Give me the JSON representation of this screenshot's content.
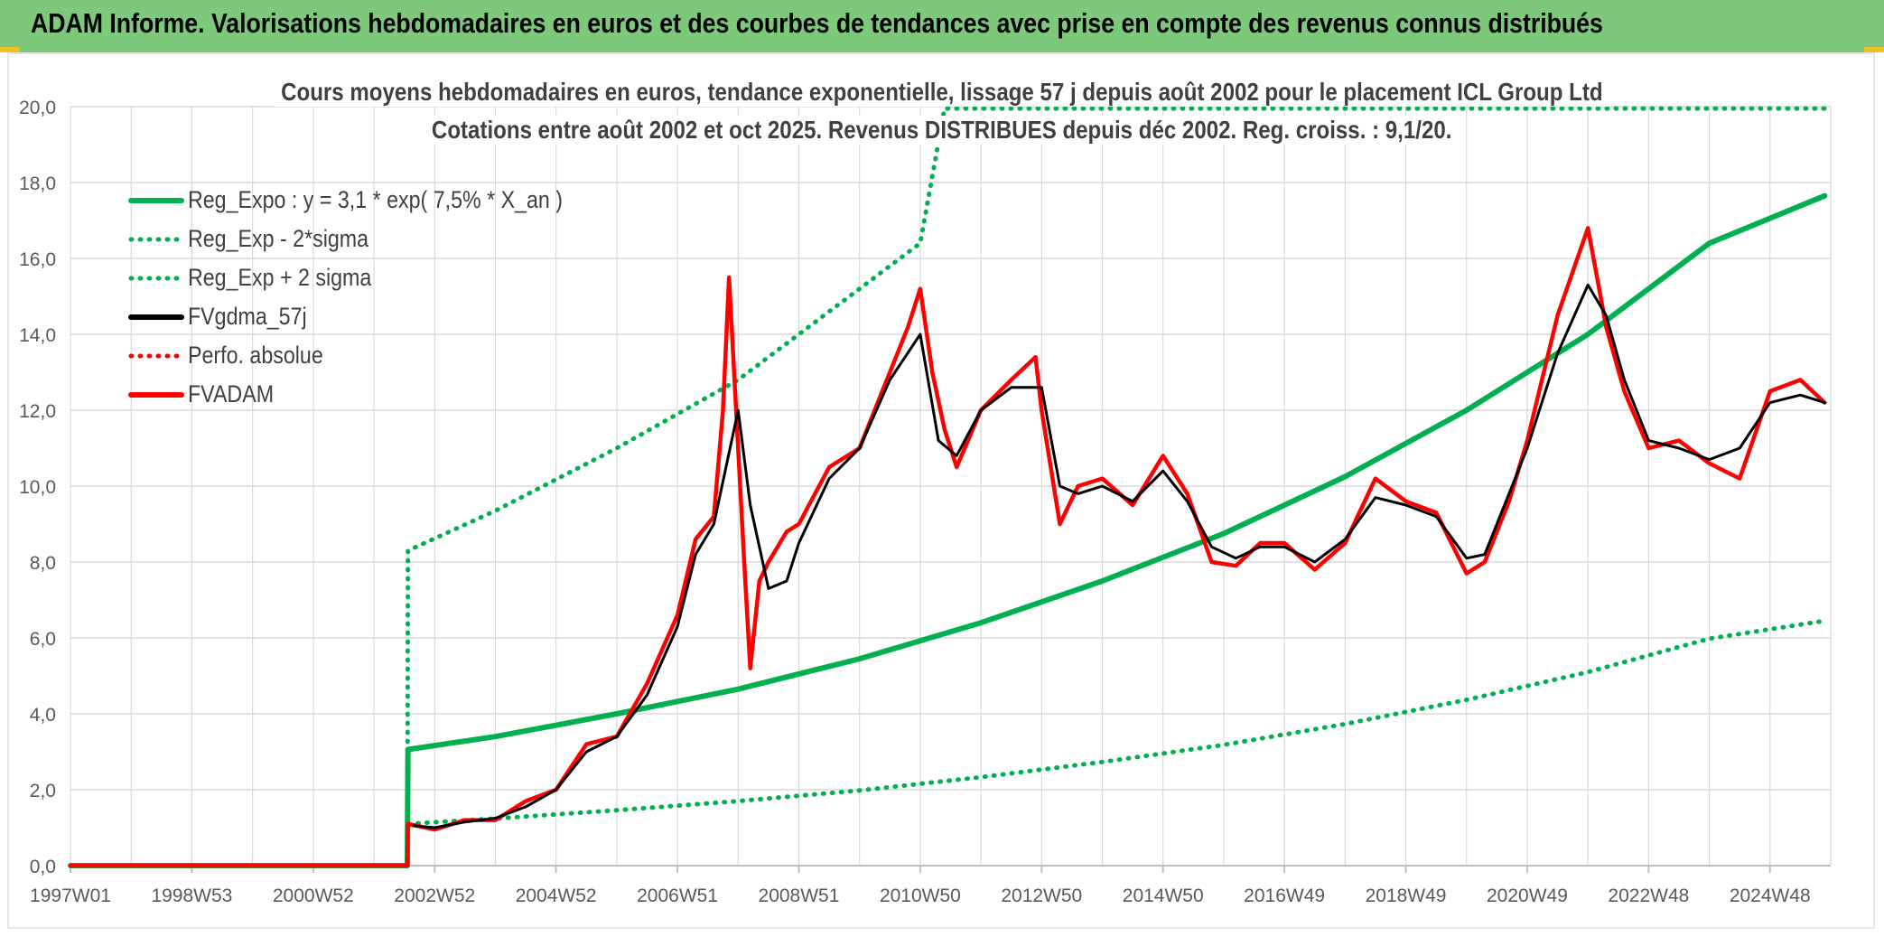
{
  "header": {
    "title": "ADAM Informe. Valorisations hebdomadaires en euros et des courbes de tendances avec prise en compte des revenus connus distribués"
  },
  "colors": {
    "header_bg": "#7dc87a",
    "green": "#00b050",
    "red": "#ff0000",
    "black": "#000000",
    "grid": "#d9d9d9",
    "axis_text": "#595959"
  },
  "chart_data": {
    "type": "line",
    "title": "Cours moyens hebdomadaires en euros, tendance exponentielle, lissage 57 j depuis août 2002 pour le placement ICL Group Ltd",
    "subtitle": "Cotations entre août 2002 et oct 2025. Revenus DISTRIBUES depuis déc 2002. Reg. croiss. : 9,1/20.",
    "x_tick_labels": [
      "1997W01",
      "1998W53",
      "2000W52",
      "2002W52",
      "2004W52",
      "2006W51",
      "2008W51",
      "2010W50",
      "2012W50",
      "2014W50",
      "2016W49",
      "2018W49",
      "2020W49",
      "2022W48",
      "2024W48"
    ],
    "x_ticks_decimal_year": [
      1997.0,
      1999.0,
      2001.0,
      2003.0,
      2005.0,
      2007.0,
      2009.0,
      2011.0,
      2013.0,
      2015.0,
      2017.0,
      2019.0,
      2021.0,
      2023.0,
      2025.0
    ],
    "x_range": [
      1997.0,
      2026.0
    ],
    "y_tick_labels": [
      "0,0",
      "2,0",
      "4,0",
      "6,0",
      "8,0",
      "10,0",
      "12,0",
      "14,0",
      "16,0",
      "18,0",
      "20,0"
    ],
    "ylim": [
      0,
      20
    ],
    "grid": true,
    "legend_position": "top-left",
    "series": [
      {
        "name": "Reg_Expo : y = 3,1 * exp( 7,5% *  X_an )",
        "color": "#00b050",
        "style": "solid",
        "x": [
          1997.0,
          2002.55,
          2002.56,
          2004,
          2006,
          2008,
          2010,
          2012,
          2014,
          2016,
          2018,
          2020,
          2022,
          2024,
          2025.9
        ],
        "y": [
          0,
          0,
          3.06,
          3.4,
          4.0,
          4.65,
          5.45,
          6.4,
          7.5,
          8.75,
          10.25,
          12.0,
          14.0,
          16.4,
          17.65
        ]
      },
      {
        "name": "Reg_Exp - 2*sigma",
        "color": "#00b050",
        "style": "dotted",
        "x": [
          1997.0,
          2002.55,
          2002.56,
          2004,
          2006,
          2008,
          2010,
          2012,
          2014,
          2016,
          2018,
          2020,
          2022,
          2024,
          2025.9
        ],
        "y": [
          0,
          0,
          1.1,
          1.24,
          1.46,
          1.7,
          1.98,
          2.33,
          2.73,
          3.18,
          3.73,
          4.37,
          5.1,
          5.98,
          6.45
        ]
      },
      {
        "name": "Reg_Exp + 2 sigma",
        "color": "#00b050",
        "style": "dotted",
        "x": [
          1997.0,
          2002.55,
          2002.56,
          2004,
          2006,
          2008,
          2010,
          2011.0,
          2011.4,
          2024.0,
          2025.9
        ],
        "y": [
          0,
          0,
          8.3,
          9.35,
          11.0,
          12.8,
          15.2,
          16.4,
          19.95,
          19.95,
          19.95
        ]
      },
      {
        "name": "FVgdma_57j",
        "color": "#000000",
        "style": "solid",
        "x": [
          2002.65,
          2003.0,
          2003.5,
          2004.0,
          2004.5,
          2005.0,
          2005.5,
          2006.0,
          2006.5,
          2007.0,
          2007.3,
          2007.6,
          2008.0,
          2008.2,
          2008.5,
          2008.8,
          2009.0,
          2009.5,
          2010.0,
          2010.5,
          2011.0,
          2011.3,
          2011.6,
          2012.0,
          2012.5,
          2013.0,
          2013.3,
          2013.6,
          2014.0,
          2014.5,
          2015.0,
          2015.4,
          2015.8,
          2016.2,
          2016.6,
          2017.0,
          2017.5,
          2018.0,
          2018.5,
          2019.0,
          2019.5,
          2020.0,
          2020.3,
          2020.7,
          2021.0,
          2021.5,
          2022.0,
          2022.3,
          2022.6,
          2023.0,
          2023.5,
          2024.0,
          2024.5,
          2025.0,
          2025.5,
          2025.9
        ],
        "y": [
          1.05,
          1.0,
          1.15,
          1.25,
          1.55,
          2.0,
          3.0,
          3.4,
          4.5,
          6.3,
          8.2,
          9.0,
          12.0,
          9.5,
          7.3,
          7.5,
          8.5,
          10.2,
          11.0,
          12.8,
          14.0,
          11.2,
          10.8,
          12.0,
          12.6,
          12.6,
          10.0,
          9.8,
          10.0,
          9.6,
          10.4,
          9.6,
          8.4,
          8.1,
          8.4,
          8.4,
          8.0,
          8.6,
          9.7,
          9.5,
          9.2,
          8.1,
          8.2,
          9.8,
          11.0,
          13.5,
          15.3,
          14.5,
          12.8,
          11.2,
          11.0,
          10.7,
          11.0,
          12.2,
          12.4,
          12.2
        ]
      },
      {
        "name": "Perfo. absolue",
        "color": "#ff0000",
        "style": "dotted",
        "x": [],
        "y": []
      },
      {
        "name": "FVADAM",
        "color": "#ff0000",
        "style": "solid",
        "x": [
          1997.0,
          2002.55,
          2002.56,
          2003.0,
          2003.5,
          2004.0,
          2004.5,
          2005.0,
          2005.5,
          2006.0,
          2006.5,
          2007.0,
          2007.3,
          2007.6,
          2007.75,
          2007.85,
          2008.0,
          2008.1,
          2008.2,
          2008.35,
          2008.5,
          2008.8,
          2009.0,
          2009.5,
          2010.0,
          2010.5,
          2010.8,
          2011.0,
          2011.2,
          2011.4,
          2011.6,
          2012.0,
          2012.5,
          2012.9,
          2013.0,
          2013.3,
          2013.6,
          2014.0,
          2014.5,
          2015.0,
          2015.4,
          2015.8,
          2016.2,
          2016.6,
          2017.0,
          2017.5,
          2018.0,
          2018.5,
          2019.0,
          2019.5,
          2020.0,
          2020.3,
          2020.7,
          2021.0,
          2021.5,
          2022.0,
          2022.15,
          2022.3,
          2022.6,
          2023.0,
          2023.5,
          2024.0,
          2024.5,
          2025.0,
          2025.5,
          2025.9
        ],
        "y": [
          0,
          0,
          1.1,
          0.95,
          1.2,
          1.2,
          1.7,
          2.0,
          3.2,
          3.4,
          4.8,
          6.6,
          8.6,
          9.2,
          12.0,
          15.5,
          11.0,
          8.0,
          5.2,
          7.5,
          8.0,
          8.8,
          9.0,
          10.5,
          11.0,
          13.0,
          14.2,
          15.2,
          13.0,
          11.5,
          10.5,
          12.0,
          12.8,
          13.4,
          12.0,
          9.0,
          10.0,
          10.2,
          9.5,
          10.8,
          9.8,
          8.0,
          7.9,
          8.5,
          8.5,
          7.8,
          8.5,
          10.2,
          9.6,
          9.3,
          7.7,
          8.0,
          9.6,
          11.2,
          14.5,
          16.8,
          15.5,
          14.2,
          12.5,
          11.0,
          11.2,
          10.6,
          10.2,
          12.5,
          12.8,
          12.2
        ]
      }
    ]
  }
}
